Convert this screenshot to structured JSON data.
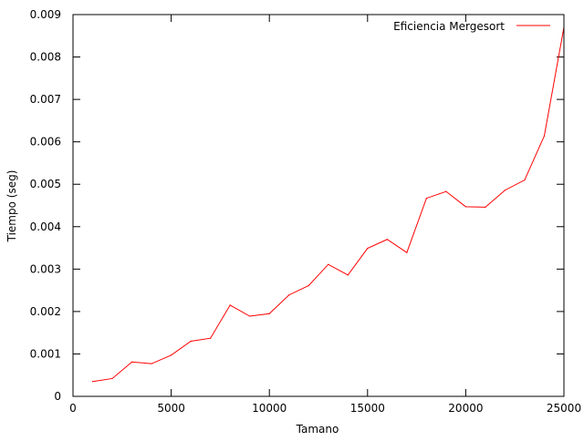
{
  "chart_data": {
    "type": "line",
    "title": "",
    "xlabel": "Tamano",
    "ylabel": "Tiempo (seg)",
    "xlim": [
      0,
      25000
    ],
    "ylim": [
      0,
      0.009
    ],
    "grid": false,
    "legend_position": "top-right",
    "x_ticks": [
      0,
      5000,
      10000,
      15000,
      20000,
      25000
    ],
    "x_tick_labels": [
      "0",
      "5000",
      "10000",
      "15000",
      "20000",
      "25000"
    ],
    "y_ticks": [
      0,
      0.001,
      0.002,
      0.003,
      0.004,
      0.005,
      0.006,
      0.007,
      0.008,
      0.009
    ],
    "y_tick_labels": [
      "0",
      "0.001",
      "0.002",
      "0.003",
      "0.004",
      "0.005",
      "0.006",
      "0.007",
      "0.008",
      "0.009"
    ],
    "series": [
      {
        "name": "Eficiencia Mergesort",
        "color": "#ff0000",
        "x": [
          1000,
          2000,
          3000,
          4000,
          5000,
          6000,
          7000,
          8000,
          9000,
          10000,
          11000,
          12000,
          13000,
          14000,
          15000,
          16000,
          17000,
          18000,
          19000,
          20000,
          21000,
          22000,
          23000,
          24000,
          25000
        ],
        "y": [
          0.00035,
          0.00042,
          0.00081,
          0.00077,
          0.00097,
          0.0013,
          0.00137,
          0.00215,
          0.00189,
          0.00195,
          0.00239,
          0.00261,
          0.00311,
          0.00286,
          0.00349,
          0.0037,
          0.00339,
          0.00467,
          0.00483,
          0.00447,
          0.00446,
          0.00486,
          0.0051,
          0.00614,
          0.0087
        ]
      }
    ]
  }
}
